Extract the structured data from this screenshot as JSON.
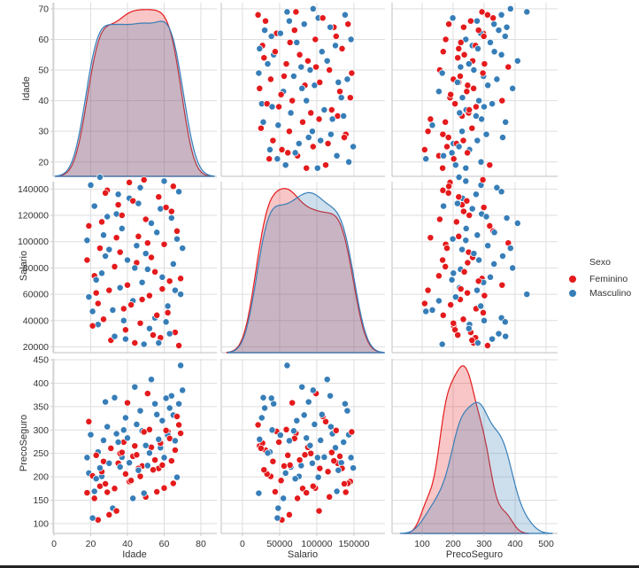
{
  "chart_data": {
    "type": "scatter",
    "title": "",
    "variables": [
      "Idade",
      "Salario",
      "PrecoSeguro"
    ],
    "axes": {
      "Idade": {
        "range": [
          -0.5,
          88.7
        ],
        "yrange": [
          15.3,
          72
        ],
        "xticks": [
          0,
          20,
          40,
          60,
          80
        ],
        "yticks": [
          20,
          30,
          40,
          50,
          60,
          70
        ],
        "xtick_labels": [
          "0",
          "20",
          "40",
          "60",
          "80"
        ],
        "ytick_labels": [
          "20",
          "30",
          "40",
          "50",
          "60",
          "70"
        ]
      },
      "Salario": {
        "range": [
          -28500,
          191700
        ],
        "yrange": [
          15600,
          145600
        ],
        "xticks": [
          0,
          50000,
          100000,
          150000
        ],
        "yticks": [
          20000,
          40000,
          60000,
          80000,
          100000,
          120000,
          140000
        ],
        "xtick_labels": [
          "0",
          "50000",
          "100000",
          "150000"
        ],
        "ytick_labels": [
          "20000",
          "40000",
          "60000",
          "80000",
          "100000",
          "120000",
          "140000"
        ]
      },
      "PrecoSeguro": {
        "range": [
          3,
          537
        ],
        "yrange": [
          79,
          452
        ],
        "xticks": [
          100,
          200,
          300,
          400,
          500
        ],
        "yticks": [
          100,
          150,
          200,
          250,
          300,
          350,
          400,
          450
        ],
        "xtick_labels": [
          "100",
          "200",
          "300",
          "400",
          "500"
        ],
        "ytick_labels": [
          "100",
          "150",
          "200",
          "250",
          "300",
          "350",
          "400",
          "450"
        ]
      }
    },
    "grid": true,
    "diagonal": "kde",
    "legend": {
      "title": "Sexo",
      "placement": "right",
      "entries": [
        "Feminino",
        "Masculino"
      ]
    },
    "series": [
      {
        "name": "Feminino",
        "color": "#e41a1c",
        "points": [
          [
            22,
            74000,
            154
          ],
          [
            35,
            128000,
            229
          ],
          [
            48,
            56000,
            223
          ],
          [
            60,
            98000,
            176
          ],
          [
            27,
            41000,
            233
          ],
          [
            41,
            145000,
            190
          ],
          [
            53,
            88000,
            263
          ],
          [
            66,
            31000,
            257
          ],
          [
            19,
            112000,
            318
          ],
          [
            30,
            63000,
            119
          ],
          [
            44,
            23000,
            266
          ],
          [
            57,
            134000,
            218
          ],
          [
            69,
            72000,
            293
          ],
          [
            25,
            95000,
            180
          ],
          [
            38,
            49000,
            274
          ],
          [
            50,
            117000,
            157
          ],
          [
            62,
            46000,
            297
          ],
          [
            33,
            81000,
            175
          ],
          [
            46,
            104000,
            218
          ],
          [
            58,
            27000,
            272
          ],
          [
            21,
            36000,
            202
          ],
          [
            29,
            139000,
            167
          ],
          [
            40,
            67000,
            358
          ],
          [
            52,
            59000,
            301
          ],
          [
            64,
            123000,
            234
          ],
          [
            24,
            53000,
            108
          ],
          [
            36,
            92000,
            250
          ],
          [
            47,
            38000,
            201
          ],
          [
            55,
            77000,
            236
          ],
          [
            67,
            108000,
            329
          ],
          [
            18,
            86000,
            166
          ],
          [
            31,
            25000,
            261
          ],
          [
            43,
            131000,
            244
          ],
          [
            59,
            64000,
            225
          ],
          [
            65,
            142000,
            186
          ],
          [
            26,
            115000,
            211
          ],
          [
            39,
            33000,
            206
          ],
          [
            51,
            99000,
            378
          ],
          [
            63,
            70000,
            282
          ],
          [
            68,
            21000,
            311
          ],
          [
            23,
            61000,
            246
          ],
          [
            34,
            103000,
            127
          ],
          [
            45,
            84000,
            247
          ],
          [
            56,
            44000,
            168
          ],
          [
            61,
            126000,
            299
          ],
          [
            28,
            137000,
            185
          ],
          [
            42,
            52000,
            192
          ],
          [
            49,
            147000,
            296
          ],
          [
            54,
            29000,
            215
          ],
          [
            37,
            120000,
            252
          ]
        ]
      },
      {
        "name": "Masculino",
        "color": "#377eb8",
        "points": [
          [
            20,
            143000,
            290
          ],
          [
            32,
            48000,
            133
          ],
          [
            45,
            97000,
            312
          ],
          [
            58,
            125000,
            262
          ],
          [
            69,
            60000,
            438
          ],
          [
            24,
            37000,
            253
          ],
          [
            37,
            110000,
            242
          ],
          [
            51,
            79000,
            224
          ],
          [
            63,
            30000,
            347
          ],
          [
            28,
            89000,
            360
          ],
          [
            41,
            133000,
            230
          ],
          [
            55,
            42000,
            356
          ],
          [
            67,
            102000,
            199
          ],
          [
            19,
            58000,
            208
          ],
          [
            34,
            121000,
            292
          ],
          [
            48,
            69000,
            298
          ],
          [
            60,
            146000,
            241
          ],
          [
            26,
            76000,
            201
          ],
          [
            39,
            26000,
            326
          ],
          [
            53,
            114000,
            408
          ],
          [
            65,
            83000,
            332
          ],
          [
            22,
            127000,
            169
          ],
          [
            30,
            94000,
            229
          ],
          [
            43,
            55000,
            154
          ],
          [
            57,
            23000,
            280
          ],
          [
            68,
            138000,
            356
          ],
          [
            21,
            47000,
            112
          ],
          [
            36,
            65000,
            221
          ],
          [
            47,
            141000,
            341
          ],
          [
            62,
            51000,
            289
          ],
          [
            27,
            105000,
            278
          ],
          [
            40,
            86000,
            283
          ],
          [
            52,
            34000,
            251
          ],
          [
            64,
            118000,
            373
          ],
          [
            18,
            101000,
            241
          ],
          [
            33,
            28000,
            369
          ],
          [
            46,
            129000,
            214
          ],
          [
            59,
            73000,
            320
          ],
          [
            25,
            149000,
            219
          ],
          [
            38,
            40000,
            300
          ],
          [
            50,
            91000,
            267
          ],
          [
            66,
            63000,
            277
          ],
          [
            29,
            119000,
            307
          ],
          [
            44,
            80000,
            392
          ],
          [
            56,
            107000,
            333
          ],
          [
            61,
            39000,
            368
          ],
          [
            23,
            71000,
            196
          ],
          [
            35,
            136000,
            274
          ],
          [
            49,
            22000,
            165
          ],
          [
            70,
            95000,
            385
          ]
        ]
      }
    ]
  }
}
